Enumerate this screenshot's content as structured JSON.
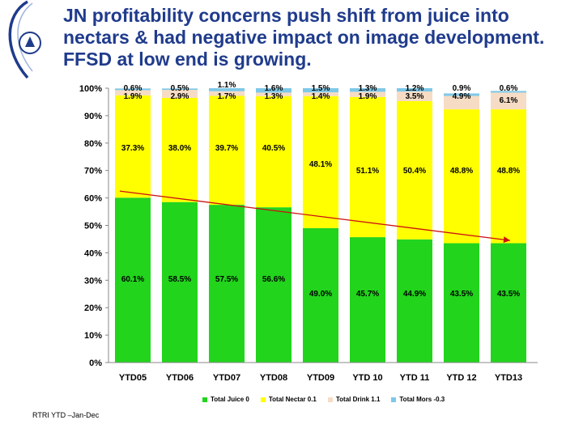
{
  "slide": {
    "title": "JN profitability concerns push shift from juice into nectars & had negative impact on  image development. FFSD at low end is growing.",
    "source_note": "RTRI YTD –Jan-Dec"
  },
  "colors": {
    "juice": "#22d41c",
    "nectar": "#ffff00",
    "drink": "#f6dcc4",
    "mors": "#7ec8e8",
    "trend": "#cc1111",
    "title": "#1f3b8c"
  },
  "chart_data": {
    "type": "bar",
    "stacked": true,
    "categories": [
      "YTD05",
      "YTD06",
      "YTD07",
      "YTD08",
      "YTD09",
      "YTD 10",
      "YTD 11",
      "YTD 12",
      "YTD13"
    ],
    "series": [
      {
        "name": "Total Juice",
        "legend": "Total Juice 0",
        "key": "juice",
        "values": [
          60.1,
          58.5,
          57.5,
          56.6,
          49.0,
          45.7,
          44.9,
          43.5,
          43.5
        ],
        "labels": [
          "60.1%",
          "58.5%",
          "57.5%",
          "56.6%",
          "49.0%",
          "45.7%",
          "44.9%",
          "43.5%",
          "43.5%"
        ]
      },
      {
        "name": "Total Nectar",
        "legend": "Total Nectar 0.1",
        "key": "nectar",
        "values": [
          37.3,
          38.0,
          39.7,
          40.5,
          48.1,
          51.1,
          50.4,
          48.8,
          48.8
        ],
        "labels": [
          "37.3%",
          "38.0%",
          "39.7%",
          "40.5%",
          "48.1%",
          "51.1%",
          "50.4%",
          "48.8%",
          "48.8%"
        ]
      },
      {
        "name": "Total Drink",
        "legend": "Total Drink 1.1",
        "key": "drink",
        "values": [
          1.9,
          2.9,
          1.7,
          1.3,
          1.4,
          1.9,
          3.5,
          4.9,
          6.1
        ],
        "labels": [
          "1.9%",
          "2.9%",
          "1.7%",
          "1.3%",
          "1.4%",
          "1.9%",
          "3.5%",
          "4.9%",
          "6.1%"
        ]
      },
      {
        "name": "Total Mors",
        "legend": "Total Mors -0.3",
        "key": "mors",
        "values": [
          0.6,
          0.5,
          1.1,
          1.6,
          1.5,
          1.3,
          1.2,
          0.9,
          0.6
        ],
        "labels": [
          "0.6%",
          "0.5%",
          "1.1%",
          "1.6%",
          "1.5%",
          "1.3%",
          "1.2%",
          "0.9%",
          "0.6%"
        ]
      }
    ],
    "ylim": [
      0,
      100
    ],
    "yticks": [
      "0%",
      "10%",
      "20%",
      "30%",
      "40%",
      "50%",
      "60%",
      "70%",
      "80%",
      "90%",
      "100%"
    ],
    "trend_line": {
      "from_category": "YTD05",
      "from_value": 62.5,
      "to_category": "YTD13",
      "to_value": 44.5
    },
    "legend_position": "bottom"
  }
}
